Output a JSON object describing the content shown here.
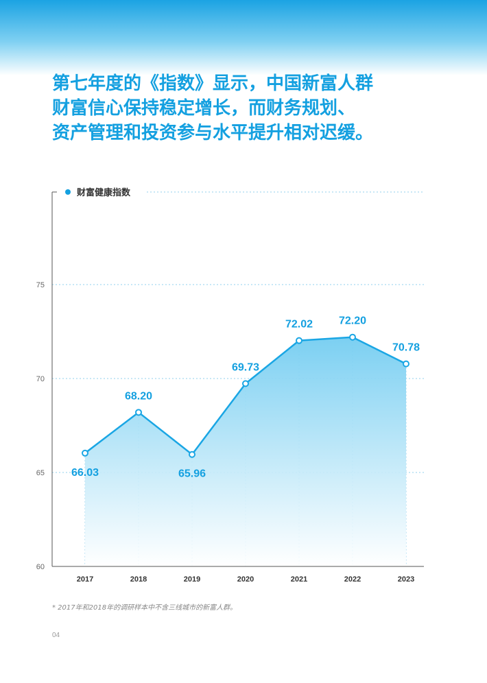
{
  "header": {
    "lines": [
      "第七年度的《指数》显示，中国新富人群",
      "财富信心保持稳定增长，而财务规划、",
      "资产管理和投资参与水平提升相对迟缓。"
    ]
  },
  "colors": {
    "accent": "#14a0e0",
    "line": "#1aa6e4",
    "grid": "#8fcfee",
    "area_top": "#74cdf1",
    "area_bottom": "#ffffff"
  },
  "chart_data": {
    "type": "area",
    "legend": "财富健康指数",
    "legend_position": "top-left",
    "categories": [
      "2017",
      "2018",
      "2019",
      "2020",
      "2021",
      "2022",
      "2023"
    ],
    "values": [
      66.03,
      68.2,
      65.96,
      69.73,
      72.02,
      72.2,
      70.78
    ],
    "value_labels": [
      "66.03",
      "68.20",
      "65.96",
      "69.73",
      "72.02",
      "72.20",
      "70.78"
    ],
    "yticks": [
      "60",
      "65",
      "70",
      "75"
    ],
    "ylim": [
      60,
      80
    ],
    "grid": true
  },
  "footnote": "* 2017年和2018年的调研样本中不含三线城市的新富人群。",
  "page_number": "04"
}
